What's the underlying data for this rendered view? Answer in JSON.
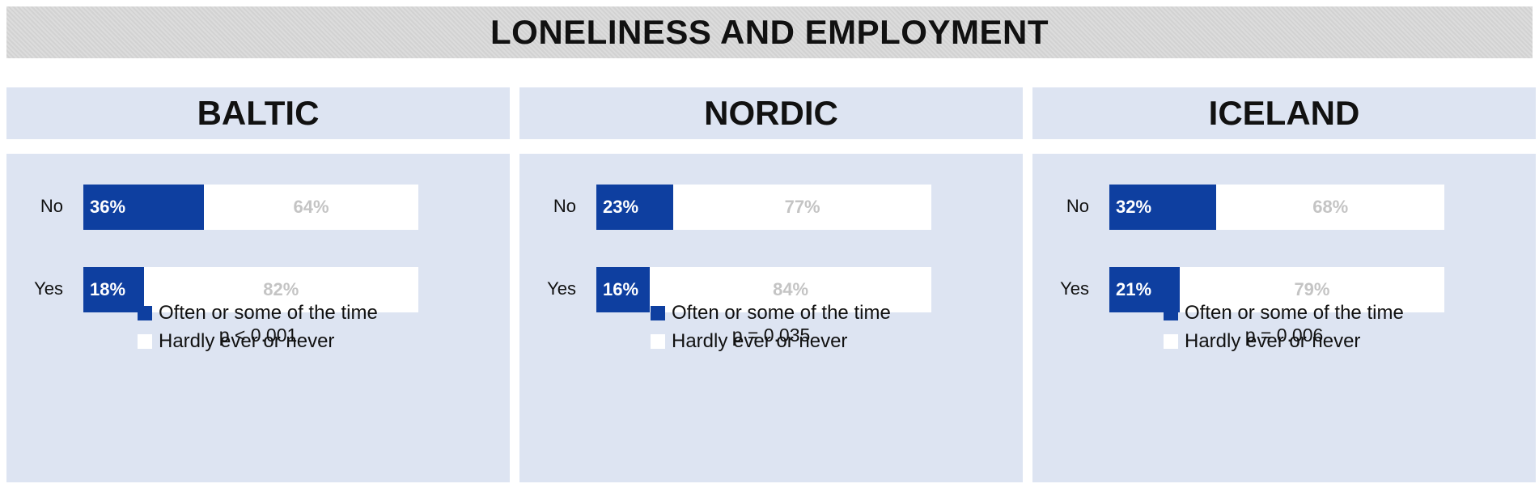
{
  "title": "LONELINESS AND EMPLOYMENT",
  "legend": {
    "often": "Often or some of the time",
    "hardly": "Hardly ever or never"
  },
  "colors": {
    "often": "#0e3fa0",
    "hardly": "#ffffff",
    "panel_bg": "#dde4f2"
  },
  "chart_data": [
    {
      "type": "bar",
      "stacked": true,
      "orientation": "horizontal",
      "title": "BALTIC",
      "categories": [
        "No",
        "Yes"
      ],
      "series": [
        {
          "name": "Often or some of the time",
          "values": [
            36,
            18
          ],
          "labels": [
            "36%",
            "18%"
          ]
        },
        {
          "name": "Hardly ever or never",
          "values": [
            64,
            82
          ],
          "labels": [
            "64%",
            "82%"
          ]
        }
      ],
      "annotation": "p < 0.001"
    },
    {
      "type": "bar",
      "stacked": true,
      "orientation": "horizontal",
      "title": "NORDIC",
      "categories": [
        "No",
        "Yes"
      ],
      "series": [
        {
          "name": "Often or some of the time",
          "values": [
            23,
            16
          ],
          "labels": [
            "23%",
            "16%"
          ]
        },
        {
          "name": "Hardly ever or never",
          "values": [
            77,
            84
          ],
          "labels": [
            "77%",
            "84%"
          ]
        }
      ],
      "annotation": "p = 0.035"
    },
    {
      "type": "bar",
      "stacked": true,
      "orientation": "horizontal",
      "title": "ICELAND",
      "categories": [
        "No",
        "Yes"
      ],
      "series": [
        {
          "name": "Often or some of the time",
          "values": [
            32,
            21
          ],
          "labels": [
            "32%",
            "21%"
          ]
        },
        {
          "name": "Hardly ever or never",
          "values": [
            68,
            79
          ],
          "labels": [
            "68%",
            "79%"
          ]
        }
      ],
      "annotation": "p = 0.006"
    }
  ]
}
